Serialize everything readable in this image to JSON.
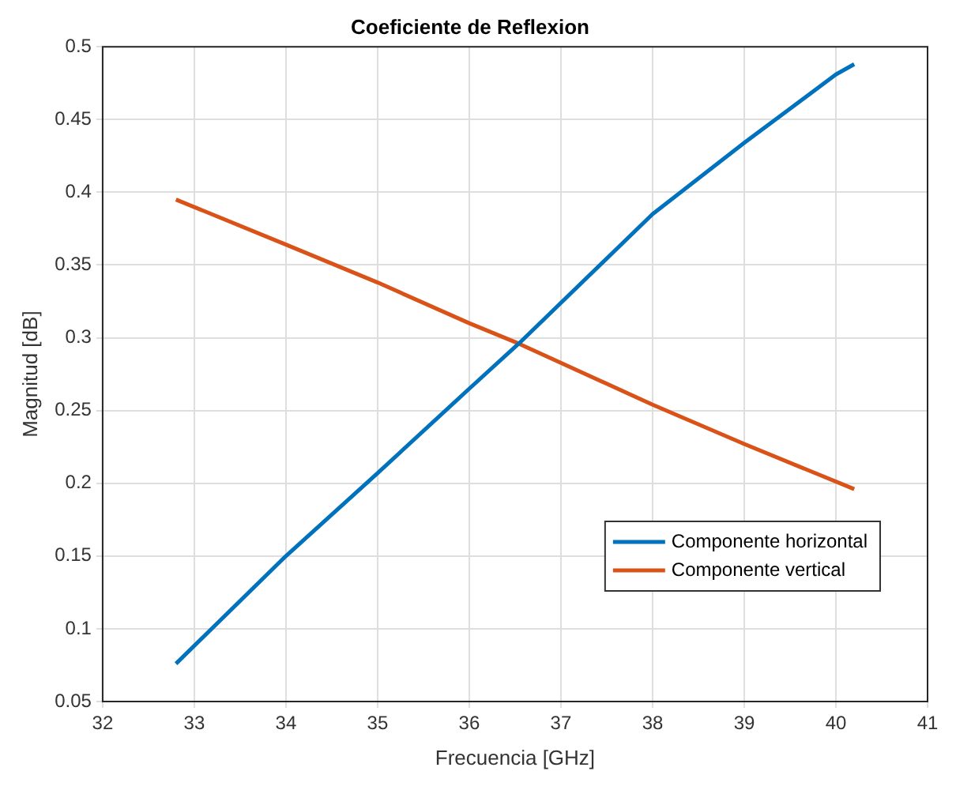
{
  "chart_data": {
    "type": "line",
    "title": "Coeficiente de Reflexion",
    "xlabel": "Frecuencia [GHz]",
    "ylabel": "Magnitud [dB]",
    "xlim": [
      32,
      41
    ],
    "xticks": [
      32,
      33,
      34,
      35,
      36,
      37,
      38,
      39,
      40,
      41
    ],
    "ylim": [
      0.05,
      0.5
    ],
    "yticks": [
      0.05,
      0.1,
      0.15,
      0.2,
      0.25,
      0.3,
      0.35,
      0.4,
      0.45,
      0.5
    ],
    "grid": true,
    "legend": "bottom right",
    "marker": "none",
    "line_style": "solid",
    "series": [
      {
        "name": "Componente horizontal",
        "color": "#0072bd",
        "x": [
          32.8,
          34,
          35,
          36,
          36.54,
          38,
          39,
          40,
          40.2
        ],
        "values": [
          0.076,
          0.15,
          0.207,
          0.265,
          0.296,
          0.385,
          0.434,
          0.481,
          0.488
        ]
      },
      {
        "name": "Componente vertical",
        "color": "#d95319",
        "x": [
          32.8,
          34,
          35,
          36,
          36.54,
          38,
          39,
          40.2
        ],
        "values": [
          0.395,
          0.364,
          0.338,
          0.31,
          0.296,
          0.254,
          0.227,
          0.196
        ]
      }
    ]
  }
}
